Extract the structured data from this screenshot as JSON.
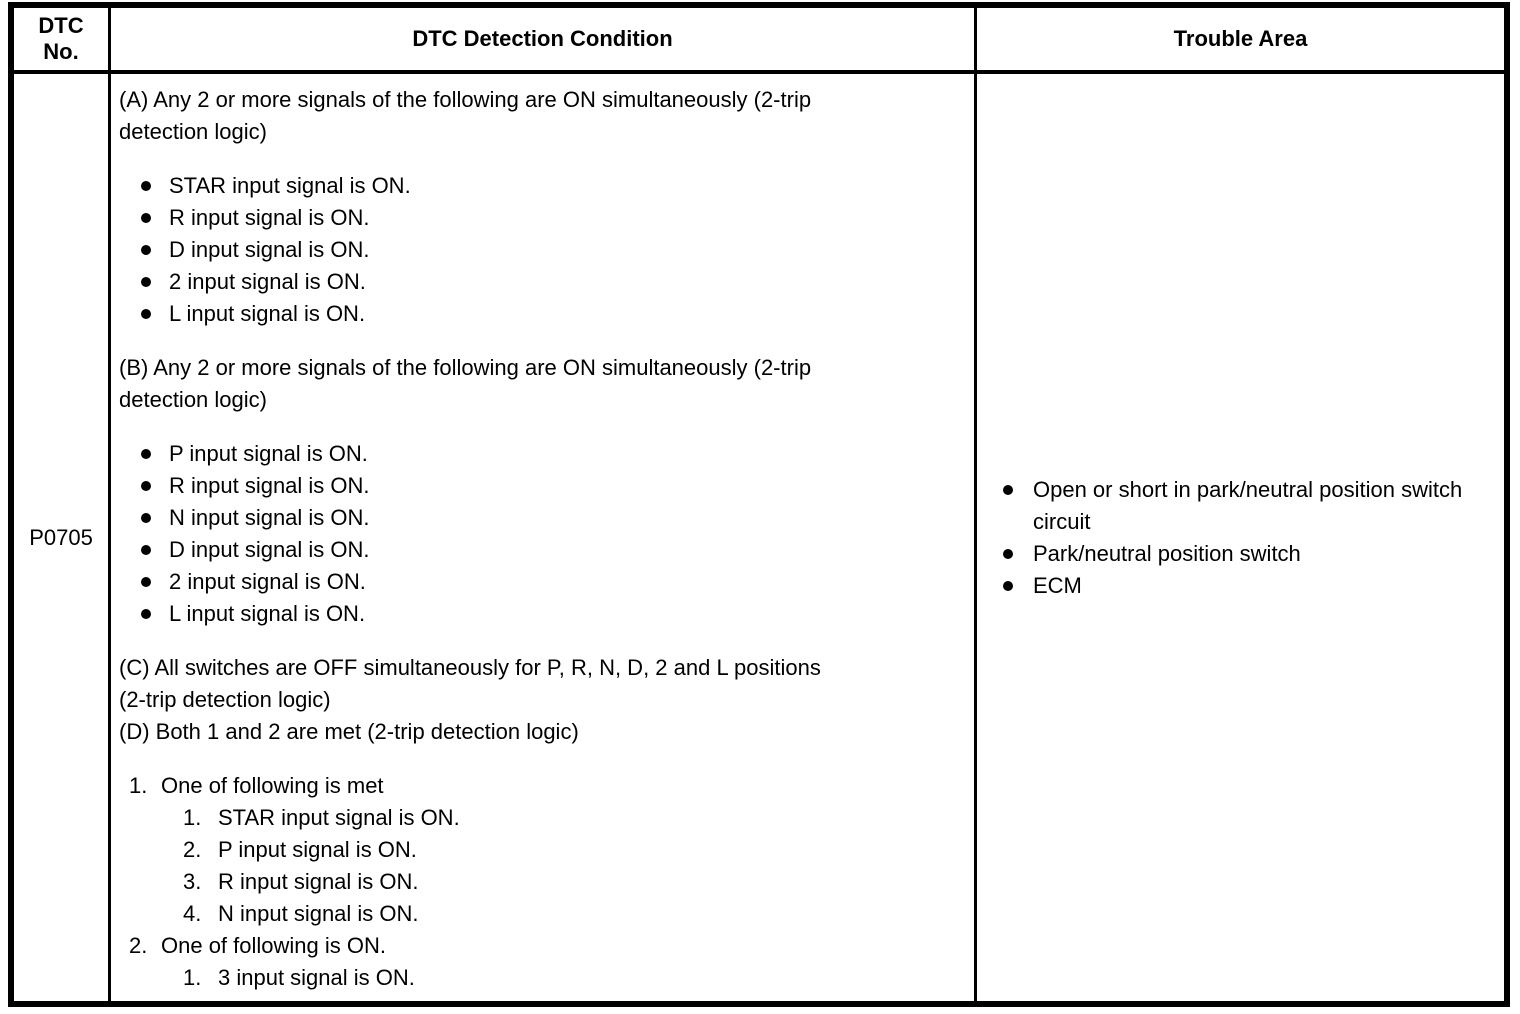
{
  "colors": {
    "background": "#ffffff",
    "text": "#000000",
    "border": "#000000"
  },
  "table": {
    "header": {
      "col1_line1": "DTC",
      "col1_line2": "No.",
      "col2": "DTC Detection Condition",
      "col3": "Trouble Area"
    },
    "row": {
      "dtc_no": "P0705",
      "condition_blocks": [
        {
          "type": "paragraph",
          "gap_after": true,
          "lines": [
            "(A) Any 2 or more signals of the following are ON simultaneously (2-trip",
            "detection logic)"
          ]
        },
        {
          "type": "bullets",
          "gap_after": true,
          "items": [
            "STAR input signal is ON.",
            "R input signal is ON.",
            "D input signal is ON.",
            "2 input signal is ON.",
            "L input signal is ON."
          ]
        },
        {
          "type": "paragraph",
          "gap_after": true,
          "lines": [
            "(B) Any 2 or more signals of the following are ON simultaneously (2-trip",
            "detection logic)"
          ]
        },
        {
          "type": "bullets",
          "gap_after": true,
          "items": [
            "P input signal is ON.",
            "R input signal is ON.",
            "N input signal is ON.",
            "D input signal is ON.",
            "2 input signal is ON.",
            "L input signal is ON."
          ]
        },
        {
          "type": "paragraph",
          "gap_after": false,
          "lines": [
            "(C) All switches are OFF simultaneously for P, R, N, D, 2 and L positions",
            "(2-trip detection logic)"
          ]
        },
        {
          "type": "paragraph",
          "gap_after": true,
          "lines": [
            "(D) Both 1 and 2 are met (2-trip detection logic)"
          ]
        },
        {
          "type": "ordered",
          "gap_after": false,
          "items": [
            {
              "label": "1.",
              "text": "One of following is met",
              "sub": [
                {
                  "label": "1.",
                  "text": "STAR input signal is ON."
                },
                {
                  "label": "2.",
                  "text": "P input signal is ON."
                },
                {
                  "label": "3.",
                  "text": "R input signal is ON."
                },
                {
                  "label": "4.",
                  "text": "N input signal is ON."
                }
              ]
            },
            {
              "label": "2.",
              "text": "One of following is ON.",
              "sub": [
                {
                  "label": "1.",
                  "text": "3 input signal is ON."
                }
              ]
            }
          ]
        }
      ],
      "trouble_area": [
        "Open or short in park/neutral position switch circuit",
        "Park/neutral position switch",
        "ECM"
      ]
    }
  }
}
